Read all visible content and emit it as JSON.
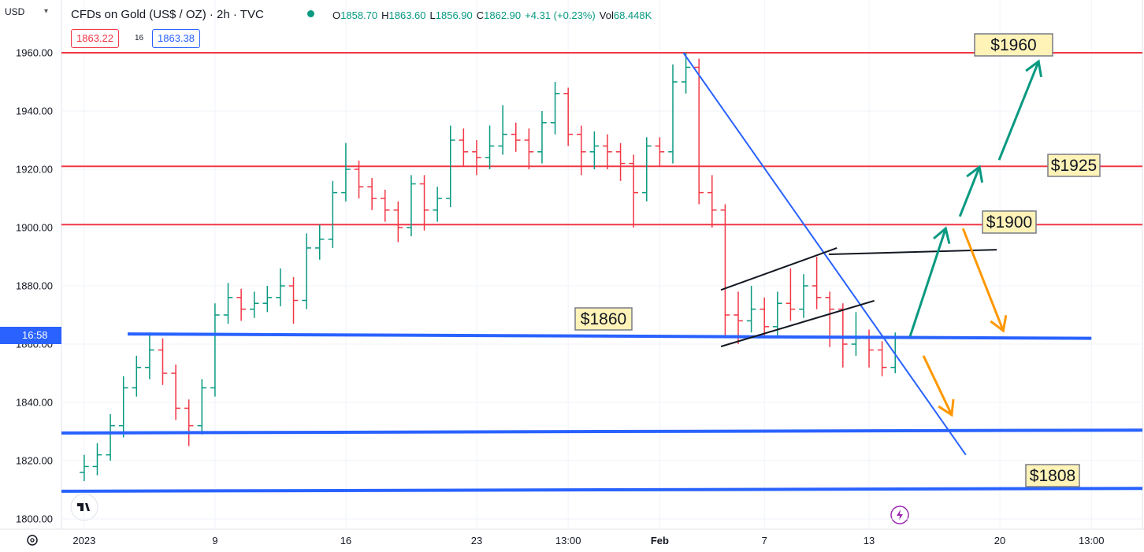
{
  "chart_data": {
    "type": "ohlc",
    "currency": "USD",
    "title": "CFDs on Gold (US$ / OZ) · 2h · TVC",
    "legend": [
      {
        "key": "O",
        "value": "1858.70"
      },
      {
        "key": "H",
        "value": "1863.60"
      },
      {
        "key": "L",
        "value": "1856.90"
      },
      {
        "key": "C",
        "value": "1862.90"
      },
      {
        "key": "",
        "value": "+4.31 (+0.23%)"
      },
      {
        "key": "Vol",
        "value": "68.448K"
      }
    ],
    "sell": "1863.22",
    "spread": "16",
    "buy": "1863.38",
    "price_tag": "16:58",
    "up_color": "#089981",
    "down_color": "#f23645",
    "x": [
      0,
      0.5,
      1,
      1.5,
      2,
      2.5,
      3,
      3.5,
      4,
      4.5,
      5,
      5.5,
      6,
      6.5,
      7,
      7.5,
      8,
      8.5,
      9,
      9.5,
      10,
      10.5,
      11,
      11.5,
      12,
      12.5,
      13,
      13.5,
      14,
      14.5,
      15,
      15.5,
      16,
      16.5,
      17,
      17.5,
      18,
      18.5,
      19,
      19.5,
      20,
      20.5,
      21,
      21.5,
      22,
      22.5,
      23,
      23.5,
      24,
      24.5,
      25,
      25.5,
      26,
      26.5,
      27,
      27.5,
      28,
      28.5,
      29,
      29.5,
      30,
      30.5,
      31
    ],
    "open": [
      1816,
      1818,
      1822,
      1832,
      1845,
      1852,
      1858,
      1850,
      1838,
      1832,
      1845,
      1870,
      1876,
      1872,
      1874,
      1876,
      1880,
      1875,
      1893,
      1896,
      1912,
      1920,
      1914,
      1910,
      1906,
      1900,
      1915,
      1906,
      1910,
      1930,
      1926,
      1924,
      1928,
      1932,
      1930,
      1926,
      1936,
      1946,
      1932,
      1926,
      1928,
      1926,
      1922,
      1912,
      1928,
      1926,
      1950,
      1955,
      1912,
      1906,
      1870,
      1868,
      1872,
      1866,
      1874,
      1872,
      1880,
      1876,
      1872,
      1860,
      1862,
      1858,
      1852
    ],
    "high": [
      1822,
      1826,
      1836,
      1849,
      1856,
      1864,
      1862,
      1853,
      1841,
      1848,
      1874,
      1881,
      1879,
      1878,
      1880,
      1886,
      1883,
      1898,
      1901,
      1916,
      1929,
      1923,
      1917,
      1913,
      1909,
      1918,
      1918,
      1914,
      1935,
      1934,
      1930,
      1935,
      1942,
      1936,
      1934,
      1940,
      1950,
      1948,
      1935,
      1933,
      1932,
      1929,
      1925,
      1931,
      1931,
      1956,
      1960,
      1958,
      1918,
      1908,
      1878,
      1880,
      1876,
      1878,
      1886,
      1884,
      1890,
      1878,
      1874,
      1871,
      1865,
      1861,
      1864
    ],
    "low": [
      1813,
      1815,
      1820,
      1828,
      1842,
      1848,
      1846,
      1834,
      1825,
      1829,
      1842,
      1867,
      1868,
      1869,
      1871,
      1873,
      1867,
      1872,
      1889,
      1893,
      1909,
      1910,
      1906,
      1902,
      1895,
      1897,
      1899,
      1902,
      1907,
      1921,
      1918,
      1920,
      1925,
      1926,
      1920,
      1922,
      1932,
      1928,
      1918,
      1920,
      1920,
      1916,
      1900,
      1909,
      1921,
      1922,
      1946,
      1908,
      1900,
      1862,
      1860,
      1864,
      1862,
      1863,
      1868,
      1869,
      1872,
      1859,
      1852,
      1856,
      1852,
      1849,
      1850
    ],
    "close": [
      1818,
      1822,
      1832,
      1845,
      1852,
      1858,
      1850,
      1838,
      1832,
      1845,
      1870,
      1876,
      1872,
      1874,
      1876,
      1880,
      1875,
      1893,
      1896,
      1912,
      1920,
      1914,
      1910,
      1906,
      1900,
      1915,
      1906,
      1910,
      1930,
      1926,
      1924,
      1928,
      1932,
      1930,
      1926,
      1936,
      1946,
      1932,
      1926,
      1928,
      1926,
      1922,
      1912,
      1928,
      1926,
      1950,
      1955,
      1912,
      1906,
      1870,
      1868,
      1872,
      1866,
      1874,
      1872,
      1880,
      1876,
      1872,
      1860,
      1862,
      1858,
      1852,
      1862
    ],
    "xlim": [
      -0.87,
      40.51
    ],
    "ylim": [
      1796.5,
      1978.1
    ],
    "yticks": [
      {
        "value": 1800,
        "label": "1800.00"
      },
      {
        "value": 1820,
        "label": "1820.00"
      },
      {
        "value": 1840,
        "label": "1840.00"
      },
      {
        "value": 1860,
        "label": "1860.00"
      },
      {
        "value": 1880,
        "label": "1880.00"
      },
      {
        "value": 1900,
        "label": "1900.00"
      },
      {
        "value": 1920,
        "label": "1920.00"
      },
      {
        "value": 1940,
        "label": "1940.00"
      },
      {
        "value": 1960,
        "label": "1960.00"
      }
    ],
    "xticks": [
      {
        "value": 0,
        "label": "2023"
      },
      {
        "value": 5,
        "label": "9"
      },
      {
        "value": 10,
        "label": "16"
      },
      {
        "value": 15,
        "label": "23"
      },
      {
        "value": 18.5,
        "label": "13:00"
      },
      {
        "value": 22,
        "label": "Feb"
      },
      {
        "value": 26,
        "label": "7"
      },
      {
        "value": 30,
        "label": "13"
      },
      {
        "value": 35,
        "label": "20"
      },
      {
        "value": 38.5,
        "label": "13:00"
      }
    ],
    "grid": true,
    "levels": [
      {
        "value": 1960,
        "color": "#f23645"
      },
      {
        "value": 1921,
        "color": "#f23645"
      },
      {
        "value": 1901,
        "color": "#f23645"
      }
    ],
    "trend_lines": [
      {
        "color": "#2962ff",
        "width": 4,
        "points": [
          [
            1.66,
            1863.5
          ],
          [
            38.5,
            1862
          ]
        ]
      },
      {
        "color": "#2962ff",
        "width": 4,
        "points": [
          [
            -0.87,
            1829.5
          ],
          [
            40.51,
            1830.5
          ]
        ]
      },
      {
        "color": "#2962ff",
        "width": 4,
        "points": [
          [
            -0.87,
            1809.5
          ],
          [
            40.51,
            1810.5
          ]
        ]
      },
      {
        "color": "#2962ff",
        "width": 2,
        "points": [
          [
            22.9,
            1960
          ],
          [
            33.7,
            1822
          ]
        ]
      },
      {
        "color": "#131722",
        "width": 2,
        "points": [
          [
            24.34,
            1859.2
          ],
          [
            30.2,
            1874.9
          ]
        ]
      },
      {
        "color": "#131722",
        "width": 2,
        "points": [
          [
            24.34,
            1878.6
          ],
          [
            28.77,
            1893.0
          ]
        ]
      },
      {
        "color": "#131722",
        "width": 2,
        "points": [
          [
            28.46,
            1890.8
          ],
          [
            34.88,
            1892.4
          ]
        ]
      }
    ],
    "arrows": [
      {
        "color": "#089981",
        "points": [
          [
            31.57,
            1862.7
          ],
          [
            32.93,
            1899.7
          ]
        ]
      },
      {
        "color": "#089981",
        "points": [
          [
            33.47,
            1903.8
          ],
          [
            34.22,
            1920.8
          ]
        ]
      },
      {
        "color": "#089981",
        "points": [
          [
            34.97,
            1923.2
          ],
          [
            36.48,
            1957.0
          ]
        ]
      },
      {
        "color": "#ff9800",
        "points": [
          [
            33.59,
            1899.7
          ],
          [
            35.13,
            1864.6
          ]
        ]
      },
      {
        "color": "#ff9800",
        "points": [
          [
            32.08,
            1856.0
          ],
          [
            33.16,
            1835.7
          ]
        ]
      }
    ],
    "annotations": [
      "$1960",
      "$1925",
      "$1900",
      "$1860",
      "$1808"
    ]
  }
}
